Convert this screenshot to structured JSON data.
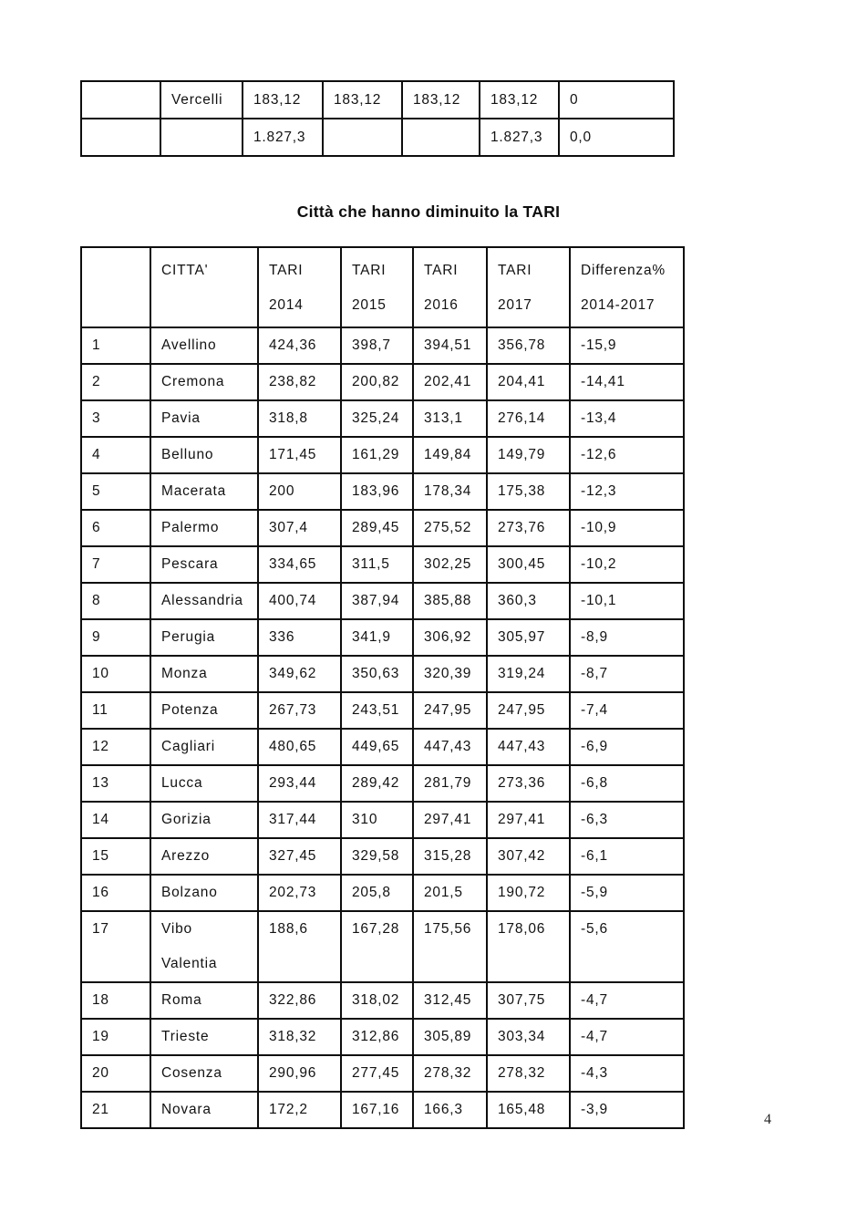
{
  "title": "Città che hanno diminuito la TARI",
  "page_number": "4",
  "top_table": {
    "rows": [
      [
        "",
        "Vercelli",
        "183,12",
        "183,12",
        "183,12",
        "183,12",
        "0"
      ],
      [
        "",
        "",
        "1.827,3",
        "",
        "",
        "1.827,3",
        "0,0"
      ]
    ]
  },
  "main_table": {
    "header_rows": [
      [
        "",
        "CITTA'",
        [
          "TARI",
          "2014"
        ],
        [
          "TARI",
          "2015"
        ],
        [
          "TARI",
          "2016"
        ],
        [
          "TARI",
          "2017"
        ],
        [
          "Differenza%",
          "2014-2017"
        ]
      ]
    ],
    "rows": [
      [
        "1",
        "Avellino",
        "424,36",
        "398,7",
        "394,51",
        "356,78",
        "-15,9"
      ],
      [
        "2",
        "Cremona",
        "238,82",
        "200,82",
        "202,41",
        "204,41",
        "-14,41"
      ],
      [
        "3",
        "Pavia",
        "318,8",
        "325,24",
        "313,1",
        "276,14",
        "-13,4"
      ],
      [
        "4",
        "Belluno",
        "171,45",
        "161,29",
        "149,84",
        "149,79",
        "-12,6"
      ],
      [
        "5",
        "Macerata",
        "200",
        "183,96",
        "178,34",
        "175,38",
        "-12,3"
      ],
      [
        "6",
        "Palermo",
        "307,4",
        "289,45",
        "275,52",
        "273,76",
        "-10,9"
      ],
      [
        "7",
        "Pescara",
        "334,65",
        "311,5",
        "302,25",
        "300,45",
        "-10,2"
      ],
      [
        "8",
        "Alessandria",
        "400,74",
        "387,94",
        "385,88",
        "360,3",
        "-10,1"
      ],
      [
        "9",
        "Perugia",
        "336",
        "341,9",
        "306,92",
        "305,97",
        "-8,9"
      ],
      [
        "10",
        "Monza",
        "349,62",
        "350,63",
        "320,39",
        "319,24",
        "-8,7"
      ],
      [
        "11",
        "Potenza",
        "267,73",
        "243,51",
        "247,95",
        "247,95",
        "-7,4"
      ],
      [
        "12",
        "Cagliari",
        "480,65",
        "449,65",
        "447,43",
        "447,43",
        "-6,9"
      ],
      [
        "13",
        "Lucca",
        "293,44",
        "289,42",
        "281,79",
        "273,36",
        "-6,8"
      ],
      [
        "14",
        "Gorizia",
        "317,44",
        "310",
        "297,41",
        "297,41",
        "-6,3"
      ],
      [
        "15",
        "Arezzo",
        "327,45",
        "329,58",
        "315,28",
        "307,42",
        "-6,1"
      ],
      [
        "16",
        "Bolzano",
        "202,73",
        "205,8",
        "201,5",
        "190,72",
        "-5,9"
      ],
      [
        "17",
        [
          "Vibo",
          "Valentia"
        ],
        "188,6",
        "167,28",
        "175,56",
        "178,06",
        "-5,6"
      ],
      [
        "18",
        "Roma",
        "322,86",
        "318,02",
        "312,45",
        "307,75",
        "-4,7"
      ],
      [
        "19",
        "Trieste",
        "318,32",
        "312,86",
        "305,89",
        "303,34",
        "-4,7"
      ],
      [
        "20",
        "Cosenza",
        "290,96",
        "277,45",
        "278,32",
        "278,32",
        "-4,3"
      ],
      [
        "21",
        "Novara",
        "172,2",
        "167,16",
        "166,3",
        "165,48",
        "-3,9"
      ]
    ]
  }
}
